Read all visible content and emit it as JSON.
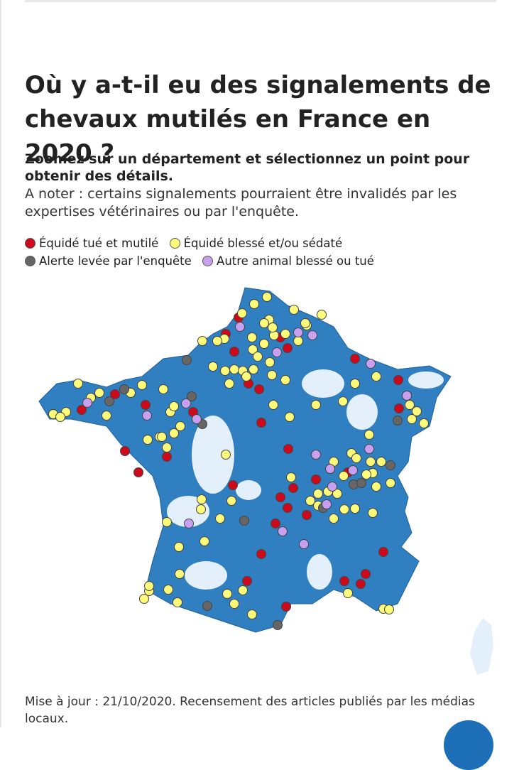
{
  "header": {
    "title": "Où y a-t-il eu des signalements de chevaux mutilés en France en 2020 ?",
    "subtitle": "Zoomez sur un département et sélectionnez un point pour obtenir des détails.",
    "note": "A noter : certains signalements pourraient être invalidés par les expertises vétérinaires ou par l'enquête."
  },
  "legend": [
    "Équidé tué et mutilé",
    "Équidé blessé et/ou sédaté",
    "Alerte levée par l'enquête",
    "Autre animal blessé ou tué"
  ],
  "footer": "Mise à jour : 21/10/2020. Recensement des articles publiés par les médias locaux."
}
